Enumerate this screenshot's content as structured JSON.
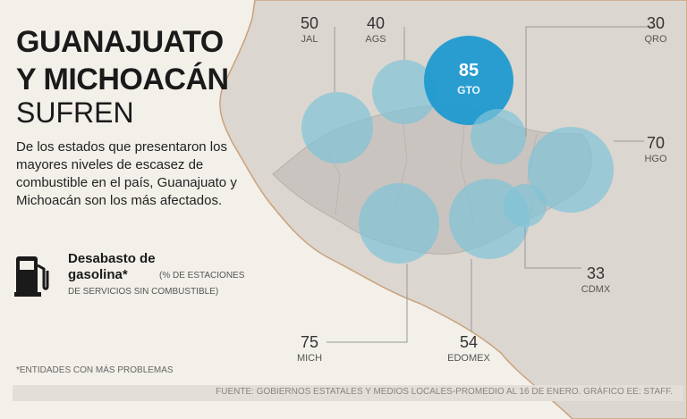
{
  "headline": {
    "line1": "GUANAJUATO",
    "line2": "Y MICHOACÁN",
    "line3": "SUFREN"
  },
  "description": "De los estados que presentaron los mayores niveles de escasez de combustible en el país, Guanajuato y Michoacán son los más afectados.",
  "legend": {
    "icon": "gas-pump-icon",
    "title_line1": "Desabasto de",
    "title_line2": "gasolina*",
    "note_line1": "(% DE ESTACIONES",
    "note_line2": "DE SERVICIOS SIN COMBUSTIBLE)"
  },
  "footnote": "*ENTIDADES CON MÁS PROBLEMAS",
  "source": "FUENTE: GOBIERNOS ESTATALES Y MEDIOS LOCALES-PROMEDIO AL 16 DE ENERO. GRÁFICO EE: STAFF.",
  "colors": {
    "background": "#f3efe9",
    "land": "#dcd6d0",
    "highlight_states": "#c9c4bf",
    "bubble": "#7fc3d7",
    "bubble_max": "#1f9ad0",
    "coast": "#c9a27a"
  },
  "states": [
    {
      "abbr": "JAL",
      "value": 50
    },
    {
      "abbr": "AGS",
      "value": 40
    },
    {
      "abbr": "GTO",
      "value": 85
    },
    {
      "abbr": "QRO",
      "value": 30
    },
    {
      "abbr": "HGO",
      "value": 70
    },
    {
      "abbr": "CDMX",
      "value": 33
    },
    {
      "abbr": "EDOMEX",
      "value": 54
    },
    {
      "abbr": "MICH",
      "value": 75
    }
  ]
}
